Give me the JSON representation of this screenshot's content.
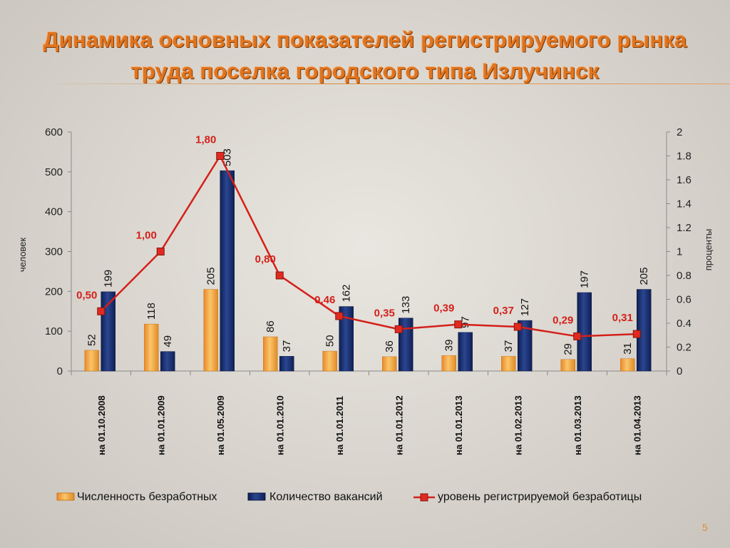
{
  "slide": {
    "title_line1": "Динамика основных показателей регистрируемого рынка",
    "title_line2": "труда поселка городского типа Излучинск",
    "page_number": "5"
  },
  "colors": {
    "title": "#e0741f",
    "bar_unemployed": "#f3a73a",
    "bar_vacancies": "#1a2f6e",
    "line_rate": "#d4201a"
  },
  "chart_data": {
    "type": "bar",
    "categories": [
      "на 01.10.2008",
      "на 01.01.2009",
      "на 01.05.2009",
      "на 01.01.2010",
      "на 01.01.2011",
      "на 01.01.2012",
      "на 01.01.2013",
      "на 01.02.2013",
      "на 01.03.2013",
      "на 01.04.2013"
    ],
    "series": [
      {
        "name": "Численность безработных",
        "type": "bar",
        "axis": "left",
        "values": [
          52,
          118,
          205,
          86,
          50,
          36,
          39,
          37,
          29,
          31
        ]
      },
      {
        "name": "Количество вакансий",
        "type": "bar",
        "axis": "left",
        "values": [
          199,
          49,
          503,
          37,
          162,
          133,
          97,
          127,
          197,
          205
        ]
      },
      {
        "name": "уровень регистрируемой безработицы",
        "type": "line",
        "axis": "right",
        "values": [
          0.5,
          1.0,
          1.8,
          0.8,
          0.46,
          0.35,
          0.39,
          0.37,
          0.29,
          0.31
        ],
        "labels": [
          "0,50",
          "1,00",
          "1,80",
          "0,80",
          "0,46",
          "0,35",
          "0,39",
          "0,37",
          "0,29",
          "0,31"
        ]
      }
    ],
    "ylabel": "человек",
    "y2label": "проценты",
    "ylim": [
      0,
      600
    ],
    "y2lim": [
      0,
      2
    ],
    "yticks": [
      "0",
      "100",
      "200",
      "300",
      "400",
      "500",
      "600"
    ],
    "y2ticks": [
      "0",
      "0.2",
      "0.4",
      "0.6",
      "0.8",
      "1",
      "1.2",
      "1.4",
      "1.6",
      "1.8",
      "2"
    ],
    "grid": false,
    "legend_position": "bottom"
  }
}
